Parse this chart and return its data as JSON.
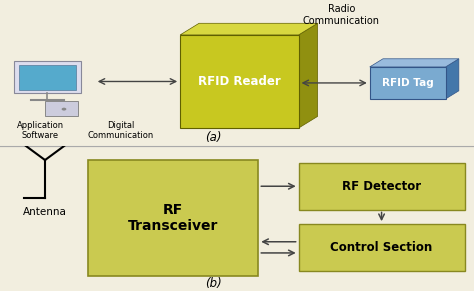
{
  "bg_color": "#f2eedf",
  "divider_color": "#aaaaaa",
  "arrow_color": "#444444",
  "text_color": "#000000",
  "reader_front_color": "#c8c820",
  "reader_side_color": "#909010",
  "reader_top_color": "#d8d840",
  "tag_front_color": "#7aaad0",
  "tag_side_color": "#4477aa",
  "tag_top_color": "#99bbdd",
  "yellow_fill": "#caca50",
  "yellow_edge": "#888820",
  "label_a": "(a)",
  "label_b": "(b)",
  "rfid_reader_label": "RFID Reader",
  "rfid_tag_label": "RFID Tag",
  "app_software_label": "Application\nSoftware",
  "digital_comm_label": "Digital\nCommunication",
  "radio_comm_label": "Radio\nCommunication",
  "rf_transceiver_label": "RF\nTransceiver",
  "rf_detector_label": "RF Detector",
  "control_section_label": "Control Section",
  "antenna_label": "Antenna"
}
